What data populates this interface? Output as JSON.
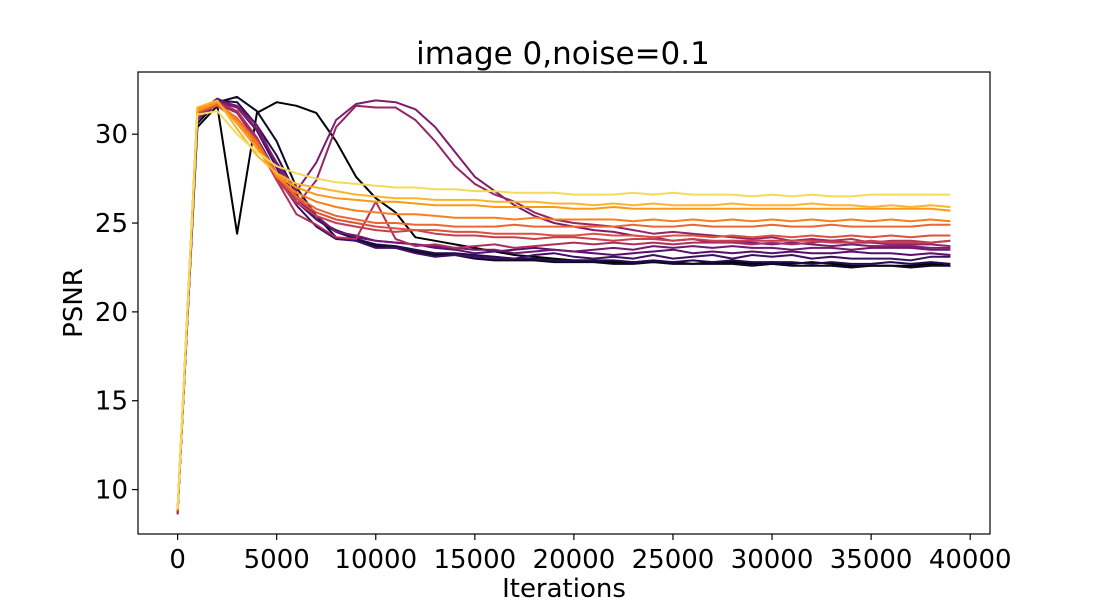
{
  "chart_data": {
    "type": "line",
    "title": "image 0,noise=0.1",
    "xlabel": "Iterations",
    "ylabel": "PSNR",
    "xlim": [
      -2000,
      41000
    ],
    "ylim": [
      7.5,
      33.5
    ],
    "xticks": [
      0,
      5000,
      10000,
      15000,
      20000,
      25000,
      30000,
      35000,
      40000
    ],
    "yticks": [
      10,
      15,
      20,
      25,
      30
    ],
    "grid": false,
    "legend": "none",
    "colormap": "inferno",
    "x": [
      0,
      1000,
      2000,
      3000,
      4000,
      5000,
      6000,
      7000,
      8000,
      9000,
      10000,
      11000,
      12000,
      13000,
      14000,
      15000,
      16000,
      17000,
      18000,
      19000,
      20000,
      21000,
      22000,
      23000,
      24000,
      25000,
      26000,
      27000,
      28000,
      29000,
      30000,
      31000,
      32000,
      33000,
      34000,
      35000,
      36000,
      37000,
      38000,
      39000
    ],
    "series": [
      {
        "color": "#000004",
        "values": [
          8.8,
          30.4,
          31.6,
          24.4,
          31.2,
          31.8,
          31.6,
          31.2,
          29.6,
          27.6,
          26.4,
          25.6,
          24.2,
          24.0,
          23.8,
          23.6,
          23.4,
          23.2,
          23.1,
          23.0,
          22.9,
          22.9,
          22.8,
          22.8,
          22.8,
          22.8,
          22.7,
          22.8,
          22.8,
          22.7,
          22.8,
          22.7,
          22.8,
          22.7,
          22.6,
          22.6,
          22.6,
          22.6,
          22.7,
          22.6
        ]
      },
      {
        "color": "#0c0826",
        "values": [
          8.7,
          30.6,
          31.8,
          32.1,
          31.3,
          29.6,
          27.0,
          25.4,
          24.2,
          24.0,
          23.7,
          23.6,
          23.4,
          23.2,
          23.2,
          23.0,
          22.9,
          22.9,
          22.9,
          22.8,
          22.8,
          22.8,
          22.7,
          22.7,
          22.8,
          22.7,
          22.7,
          22.7,
          22.7,
          22.6,
          22.7,
          22.6,
          22.6,
          22.6,
          22.5,
          22.6,
          22.6,
          22.5,
          22.6,
          22.6
        ]
      },
      {
        "color": "#230c4c",
        "values": [
          8.8,
          30.9,
          31.9,
          31.8,
          30.5,
          28.8,
          26.6,
          25.2,
          24.5,
          24.1,
          23.8,
          23.7,
          23.5,
          23.3,
          23.3,
          23.2,
          23.1,
          23.0,
          23.0,
          22.9,
          22.9,
          22.9,
          22.9,
          22.8,
          22.9,
          22.8,
          22.9,
          22.8,
          22.9,
          22.8,
          22.8,
          22.8,
          22.7,
          22.8,
          22.7,
          22.7,
          22.8,
          22.7,
          22.8,
          22.7
        ]
      },
      {
        "color": "#3d0f63",
        "values": [
          8.7,
          31.2,
          32.0,
          31.5,
          30.2,
          28.1,
          26.0,
          24.8,
          24.1,
          24.0,
          23.6,
          23.6,
          23.3,
          23.1,
          23.2,
          23.1,
          23.0,
          23.0,
          23.2,
          23.3,
          23.1,
          23.0,
          23.1,
          23.0,
          23.2,
          23.0,
          23.1,
          23.2,
          23.0,
          23.2,
          23.1,
          23.2,
          23.0,
          23.1,
          23.0,
          23.0,
          23.0,
          22.9,
          23.1,
          23.1
        ]
      },
      {
        "color": "#56106e",
        "values": [
          8.8,
          30.8,
          31.8,
          31.3,
          29.8,
          27.8,
          26.2,
          25.2,
          24.6,
          24.2,
          24.0,
          23.9,
          23.8,
          23.6,
          23.5,
          23.3,
          23.4,
          23.5,
          23.6,
          23.5,
          23.4,
          23.3,
          23.2,
          23.3,
          23.4,
          23.5,
          23.3,
          23.4,
          23.3,
          23.4,
          23.3,
          23.4,
          23.3,
          23.3,
          23.4,
          23.3,
          23.3,
          23.2,
          23.3,
          23.2
        ]
      },
      {
        "color": "#6f1a6e",
        "values": [
          8.8,
          31.1,
          31.9,
          31.6,
          30.5,
          28.3,
          26.4,
          25.4,
          24.5,
          24.3,
          24.0,
          23.9,
          23.8,
          23.7,
          23.6,
          23.5,
          23.5,
          23.3,
          23.4,
          23.5,
          23.4,
          23.5,
          23.6,
          23.5,
          23.7,
          23.6,
          23.7,
          23.6,
          23.7,
          23.6,
          23.6,
          23.5,
          23.6,
          23.6,
          23.5,
          23.6,
          23.6,
          23.6,
          23.5,
          23.5
        ]
      },
      {
        "color": "#7c1d6d",
        "values": [
          8.7,
          31.0,
          31.8,
          31.5,
          30.3,
          28.4,
          26.8,
          28.4,
          30.8,
          31.7,
          31.9,
          31.8,
          31.4,
          30.4,
          29.0,
          27.6,
          26.8,
          26.0,
          25.4,
          25.0,
          24.8,
          24.6,
          24.5,
          24.3,
          24.2,
          24.0,
          24.1,
          23.9,
          24.0,
          23.9,
          23.8,
          23.9,
          23.8,
          23.7,
          23.8,
          23.7,
          23.7,
          23.7,
          23.6,
          23.6
        ]
      },
      {
        "color": "#952567",
        "values": [
          8.6,
          30.9,
          31.7,
          31.2,
          29.6,
          27.6,
          26.0,
          27.4,
          30.4,
          31.6,
          31.5,
          31.5,
          30.8,
          29.6,
          28.2,
          27.2,
          26.6,
          26.2,
          25.6,
          25.2,
          25.0,
          24.9,
          24.8,
          24.6,
          24.4,
          24.5,
          24.4,
          24.3,
          24.2,
          24.1,
          24.2,
          24.0,
          24.1,
          24.0,
          23.9,
          23.9,
          23.8,
          23.8,
          23.8,
          23.7
        ]
      },
      {
        "color": "#ae305c",
        "values": [
          8.7,
          31.2,
          31.8,
          31.3,
          29.8,
          27.4,
          25.5,
          24.9,
          24.2,
          24.1,
          26.2,
          24.1,
          23.7,
          23.8,
          23.6,
          23.7,
          23.8,
          23.6,
          23.7,
          23.8,
          23.9,
          23.8,
          23.9,
          23.8,
          23.9,
          23.8,
          23.9,
          23.9,
          23.9,
          23.8,
          23.9,
          23.8,
          23.9,
          24.0,
          24.1,
          23.9,
          24.0,
          24.0,
          23.9,
          24.0
        ]
      },
      {
        "color": "#c6404f",
        "values": [
          8.8,
          31.3,
          31.7,
          30.9,
          29.4,
          27.4,
          26.2,
          25.4,
          25.0,
          24.8,
          24.6,
          24.5,
          24.6,
          24.4,
          24.3,
          24.3,
          24.2,
          24.2,
          24.1,
          24.2,
          24.2,
          24.1,
          24.0,
          24.1,
          24.1,
          24.0,
          24.1,
          24.0,
          24.0,
          24.0,
          24.0,
          24.0,
          24.0,
          23.9,
          23.9,
          24.0,
          23.9,
          23.9,
          23.9,
          24.0
        ]
      },
      {
        "color": "#db523f",
        "values": [
          8.8,
          31.2,
          31.6,
          30.8,
          29.4,
          27.6,
          26.4,
          25.6,
          25.2,
          25.0,
          24.8,
          24.7,
          24.6,
          24.6,
          24.5,
          24.5,
          24.4,
          24.4,
          24.4,
          24.3,
          24.3,
          24.4,
          24.3,
          24.3,
          24.2,
          24.3,
          24.3,
          24.2,
          24.3,
          24.2,
          24.3,
          24.2,
          24.3,
          24.2,
          24.3,
          24.2,
          24.3,
          24.2,
          24.3,
          24.3
        ]
      },
      {
        "color": "#ec6730",
        "values": [
          8.8,
          31.3,
          31.7,
          30.9,
          29.6,
          27.8,
          26.5,
          25.8,
          25.4,
          25.2,
          25.0,
          25.0,
          24.9,
          24.9,
          24.8,
          24.8,
          24.8,
          24.9,
          24.8,
          24.8,
          24.8,
          24.8,
          24.8,
          24.9,
          24.8,
          24.8,
          24.9,
          24.8,
          24.8,
          24.8,
          24.9,
          24.8,
          24.8,
          24.9,
          24.8,
          24.8,
          24.8,
          24.8,
          24.9,
          24.9
        ]
      },
      {
        "color": "#f7801d",
        "values": [
          8.8,
          31.4,
          31.8,
          30.8,
          29.4,
          27.6,
          26.7,
          26.2,
          25.9,
          25.7,
          25.6,
          25.5,
          25.5,
          25.4,
          25.3,
          25.3,
          25.3,
          25.2,
          25.3,
          25.2,
          25.2,
          25.2,
          25.2,
          25.1,
          25.2,
          25.1,
          25.2,
          25.1,
          25.2,
          25.1,
          25.2,
          25.1,
          25.2,
          25.1,
          25.2,
          25.1,
          25.2,
          25.1,
          25.2,
          25.1
        ]
      },
      {
        "color": "#fb9a18",
        "values": [
          8.9,
          31.3,
          31.8,
          30.6,
          29.2,
          27.7,
          27.0,
          26.6,
          26.4,
          26.3,
          26.2,
          26.2,
          26.1,
          26.0,
          26.0,
          26.0,
          25.9,
          25.9,
          25.9,
          25.9,
          25.8,
          25.8,
          25.9,
          25.8,
          25.8,
          25.8,
          25.8,
          25.8,
          25.8,
          25.8,
          25.8,
          25.8,
          25.8,
          25.8,
          25.8,
          25.8,
          25.8,
          25.8,
          25.8,
          25.7
        ]
      },
      {
        "color": "#fbb430",
        "values": [
          8.9,
          31.5,
          31.9,
          30.3,
          28.8,
          27.8,
          27.2,
          27.0,
          26.8,
          26.6,
          26.5,
          26.4,
          26.4,
          26.3,
          26.3,
          26.3,
          26.2,
          26.2,
          26.2,
          26.1,
          26.1,
          26.0,
          26.1,
          26.0,
          26.1,
          26.0,
          26.0,
          26.0,
          26.1,
          26.0,
          26.0,
          26.0,
          26.1,
          26.0,
          26.0,
          25.9,
          26.0,
          25.9,
          26.0,
          25.9
        ]
      },
      {
        "color": "#f3db5a",
        "values": [
          8.9,
          31.1,
          31.3,
          30.0,
          29.0,
          28.2,
          27.8,
          27.5,
          27.3,
          27.2,
          27.1,
          27.0,
          27.0,
          26.9,
          26.9,
          26.8,
          26.8,
          26.7,
          26.7,
          26.7,
          26.6,
          26.6,
          26.6,
          26.7,
          26.6,
          26.7,
          26.6,
          26.6,
          26.6,
          26.5,
          26.6,
          26.5,
          26.6,
          26.5,
          26.5,
          26.6,
          26.6,
          26.6,
          26.6,
          26.6
        ]
      }
    ]
  }
}
